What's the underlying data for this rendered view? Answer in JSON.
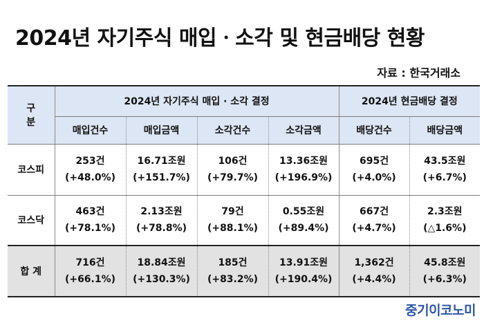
{
  "title": "2024년 자기주식 매입ㆍ소각 및 현금배당 현황",
  "source": "자료 : 한국거래소",
  "brand": "중기이코노미",
  "table": {
    "corner": "구 분",
    "group_buyback": "2024년 자기주식 매입 · 소각 결정",
    "group_dividend": "2024년 현금배당 결정",
    "columns": [
      "매입건수",
      "매입금액",
      "소각건수",
      "소각금액",
      "배당건수",
      "배당금액"
    ],
    "rows": [
      {
        "label": "코스피",
        "cells": [
          [
            "253건",
            "(+48.0%)"
          ],
          [
            "16.71조원",
            "(+151.7%)"
          ],
          [
            "106건",
            "(+79.7%)"
          ],
          [
            "13.36조원",
            "(+196.9%)"
          ],
          [
            "695건",
            "(+4.0%)"
          ],
          [
            "43.5조원",
            "(+6.7%)"
          ]
        ]
      },
      {
        "label": "코스닥",
        "cells": [
          [
            "463건",
            "(+78.1%)"
          ],
          [
            "2.13조원",
            "(+78.8%)"
          ],
          [
            "79건",
            "(+88.1%)"
          ],
          [
            "0.55조원",
            "(+89.4%)"
          ],
          [
            "667건",
            "(+4.7%)"
          ],
          [
            "2.3조원",
            "(△1.6%)"
          ]
        ]
      },
      {
        "label": "합 계",
        "cells": [
          [
            "716건",
            "(+66.1%)"
          ],
          [
            "18.84조원",
            "(+130.3%)"
          ],
          [
            "185건",
            "(+83.2%)"
          ],
          [
            "13.91조원",
            "(+190.4%)"
          ],
          [
            "1,362건",
            "(+4.4%)"
          ],
          [
            "45.8조원",
            "(+6.3%)"
          ]
        ]
      }
    ]
  }
}
